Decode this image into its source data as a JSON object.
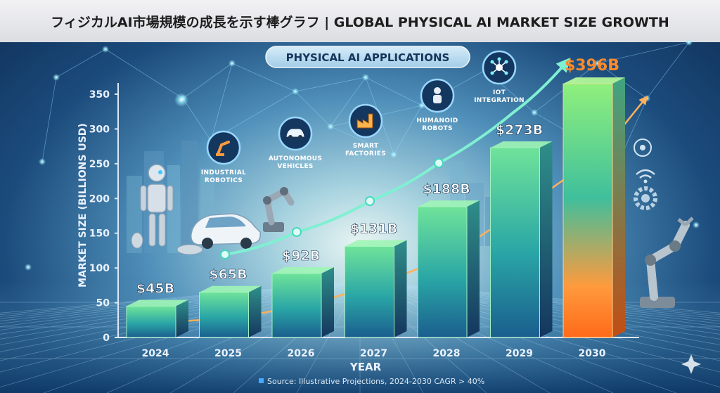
{
  "title": "フィジカルAI市場規模の成長を示す棒グラフ | GLOBAL PHYSICAL AI MARKET SIZE GROWTH",
  "apps_title": "PHYSICAL AI APPLICATIONS",
  "applications": [
    {
      "label": [
        "INDUSTRIAL",
        "ROBOTICS"
      ],
      "icon": "robot-arm-icon"
    },
    {
      "label": [
        "AUTONOMOUS",
        "VEHICLES"
      ],
      "icon": "car-icon"
    },
    {
      "label": [
        "SMART",
        "FACTORIES"
      ],
      "icon": "factory-icon"
    },
    {
      "label": [
        "HUMANOID",
        "ROBOTS"
      ],
      "icon": "humanoid-icon"
    },
    {
      "label": [
        "IOT",
        "INTEGRATION"
      ],
      "icon": "network-icon"
    }
  ],
  "source": "Source: Illustrative Projections, 2024-2030 CAGR > 40%",
  "chart_data": {
    "type": "bar",
    "categories": [
      "2024",
      "2025",
      "2026",
      "2027",
      "2028",
      "2029",
      "2030"
    ],
    "values": [
      45,
      65,
      92,
      131,
      188,
      273,
      396
    ],
    "data_labels": [
      "$45B",
      "$65B",
      "$92B",
      "$131B",
      "$188B",
      "$273B",
      "$396B"
    ],
    "xlabel": "YEAR",
    "ylabel": "MARKET SIZE (BILLIONS USD)",
    "ylim": [
      0,
      350
    ],
    "yticks": [
      0,
      50,
      100,
      150,
      200,
      250,
      300,
      350
    ],
    "highlight_color": "#ff8a2a",
    "bar_color": "#3fc9a8"
  }
}
